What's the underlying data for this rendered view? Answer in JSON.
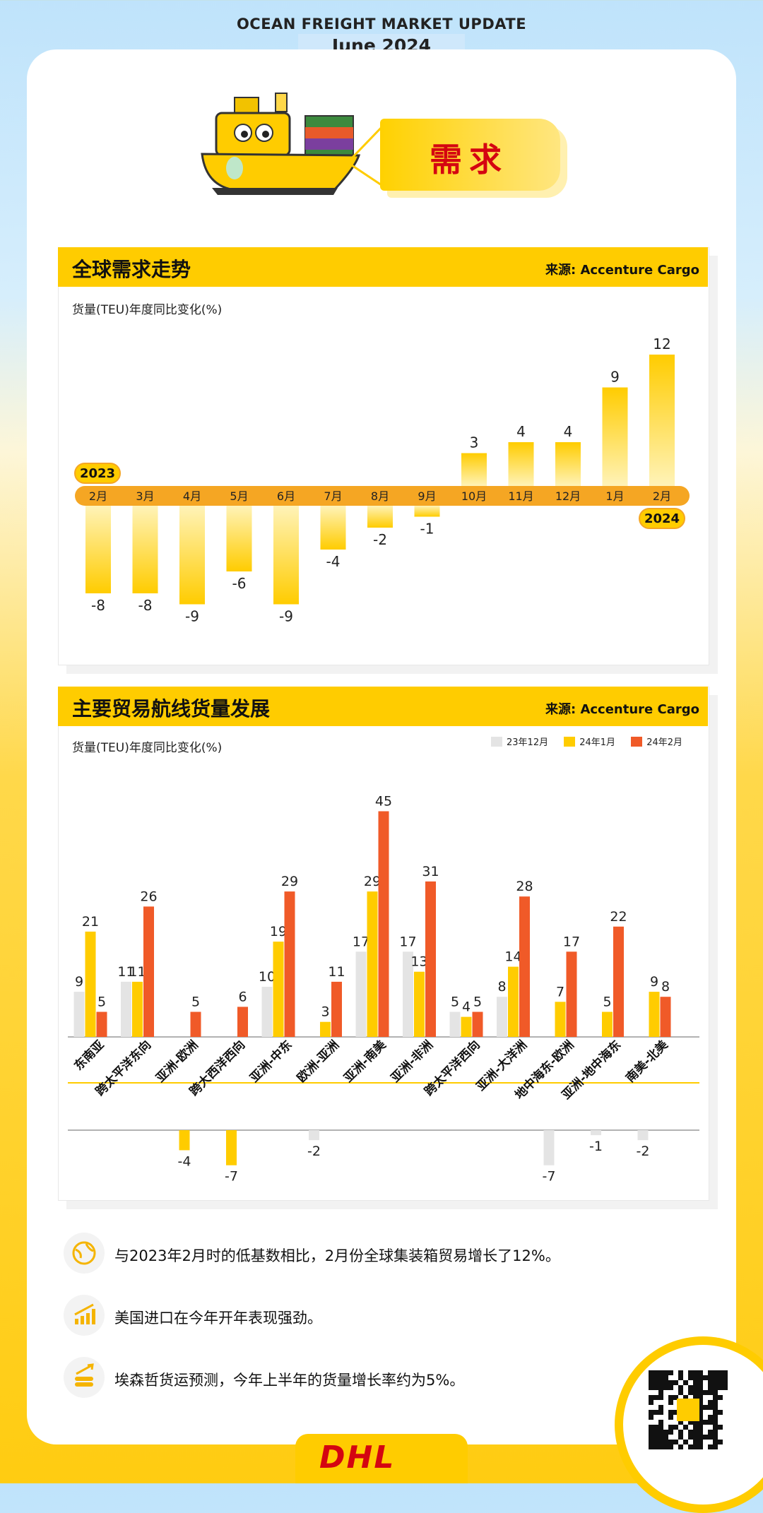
{
  "header": {
    "title": "OCEAN FREIGHT MARKET UPDATE",
    "subtitle": "June 2024"
  },
  "banner": {
    "text": "需求"
  },
  "section1": {
    "title": "全球需求走势",
    "source": "来源: Accenture Cargo",
    "ylabel": "货量(TEU)年度同比变化(%)"
  },
  "section2": {
    "title": "主要贸易航线货量发展",
    "source": "来源: Accenture Cargo",
    "ylabel": "货量(TEU)年度同比变化(%)"
  },
  "chart_data": [
    {
      "type": "bar",
      "categories": [
        "2月",
        "3月",
        "4月",
        "5月",
        "6月",
        "7月",
        "8月",
        "9月",
        "10月",
        "11月",
        "12月",
        "1月",
        "2月"
      ],
      "values": [
        -8,
        -8,
        -9,
        -6,
        -9,
        -4,
        -2,
        -1,
        3,
        4,
        4,
        9,
        12
      ],
      "year_labels": {
        "start": "2023",
        "end": "2024"
      },
      "ylabel": "货量(TEU)年度同比变化(%)",
      "colors": {
        "bar": "#ffcc00",
        "axis": "#f5a623"
      }
    },
    {
      "type": "bar",
      "categories": [
        "东南亚",
        "跨太平洋东向",
        "亚洲-欧洲",
        "跨大西洋西向",
        "亚洲-中东",
        "欧洲-亚洲",
        "亚洲-南美",
        "亚洲-非洲",
        "跨太平洋西向",
        "亚洲-大洋洲",
        "地中海东-欧洲",
        "亚洲-地中海东",
        "南美-北美"
      ],
      "series": [
        {
          "name": "23年12月",
          "color": "#e4e4e4",
          "values": [
            9,
            11,
            null,
            null,
            10,
            -2,
            17,
            17,
            5,
            8,
            -7,
            -1,
            -2
          ]
        },
        {
          "name": "24年1月",
          "color": "#ffcc00",
          "values": [
            21,
            11,
            -4,
            -7,
            19,
            3,
            29,
            13,
            4,
            14,
            7,
            5,
            9
          ]
        },
        {
          "name": "24年2月",
          "color": "#f05a28",
          "values": [
            5,
            26,
            5,
            6,
            29,
            11,
            45,
            31,
            5,
            28,
            17,
            22,
            8
          ]
        }
      ],
      "neg_overrides": {
        "亚洲-欧洲": [
          -4,
          -7
        ],
        "跨大西洋西向": [
          -7,
          -7
        ]
      },
      "ylabel": "货量(TEU)年度同比变化(%)"
    }
  ],
  "bullets": [
    {
      "icon": "globe-icon",
      "text": "与2023年2月时的低基数相比，2月份全球集装箱贸易增长了12%。"
    },
    {
      "icon": "growth-chart-icon",
      "text": "美国进口在今年开年表现强劲。"
    },
    {
      "icon": "coins-growth-icon",
      "text": "埃森哲货运预测，今年上半年的货量增长率约为5%。"
    }
  ],
  "footer": {
    "logo": "DHL"
  }
}
